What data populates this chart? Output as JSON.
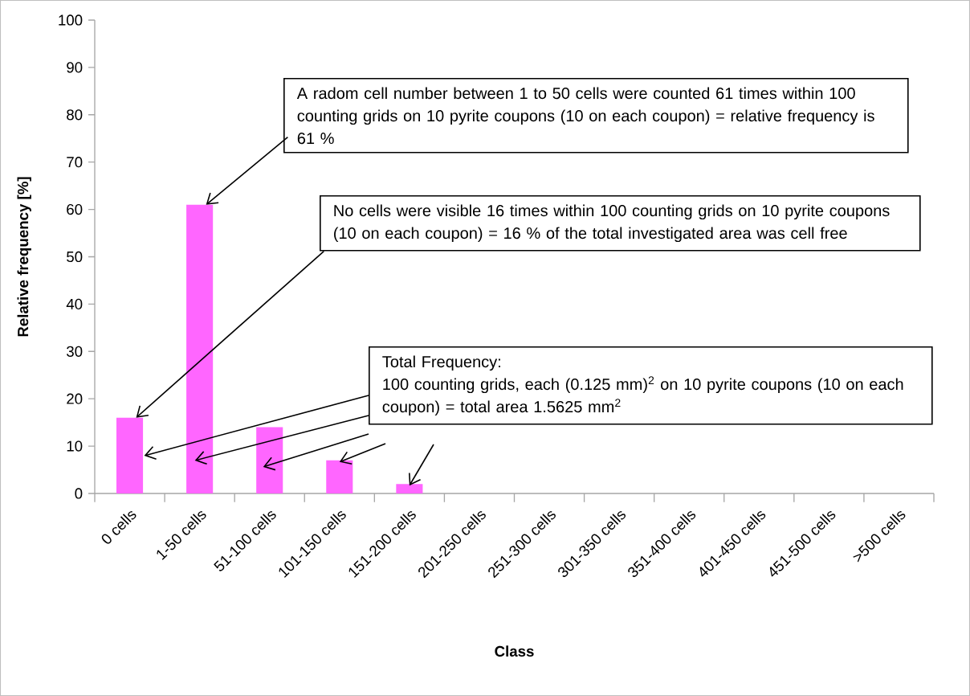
{
  "chart_data": {
    "type": "bar",
    "xlabel": "Class",
    "ylabel": "Relative frequency [%]",
    "categories": [
      "0 cells",
      "1-50 cells",
      "51-100 cells",
      "101-150 cells",
      "151-200 cells",
      "201-250 cells",
      "251-300 cells",
      "301-350 cells",
      "351-400 cells",
      "401-450 cells",
      "451-500 cells",
      ">500 cells"
    ],
    "values": [
      16,
      61,
      14,
      7,
      2,
      0,
      0,
      0,
      0,
      0,
      0,
      0
    ],
    "color": "#ff66ff",
    "ylim": [
      0,
      100
    ],
    "yticks": [
      0,
      10,
      20,
      30,
      40,
      50,
      60,
      70,
      80,
      90,
      100
    ],
    "annotations": [
      {
        "text": "A radom cell number between 1 to 50 cells were counted 61 times within 100 counting grids on 10 pyrite coupons (10 on each coupon) = relative frequency is 61 %",
        "x": "1-50 cells",
        "y": 61
      },
      {
        "text": "No cells were visible 16 times within 100 counting grids on 10 pyrite coupons (10 on each coupon) = 16 % of the total investigated area was cell free",
        "x": "0 cells",
        "y": 16
      },
      "Total Frequency:",
      "100 counting grids, each (0.125 mm)$^{2}$ on 10 pyrite coupons (10 on each coupon) = total area 1.5625 mm$^{2}$"
    ]
  }
}
